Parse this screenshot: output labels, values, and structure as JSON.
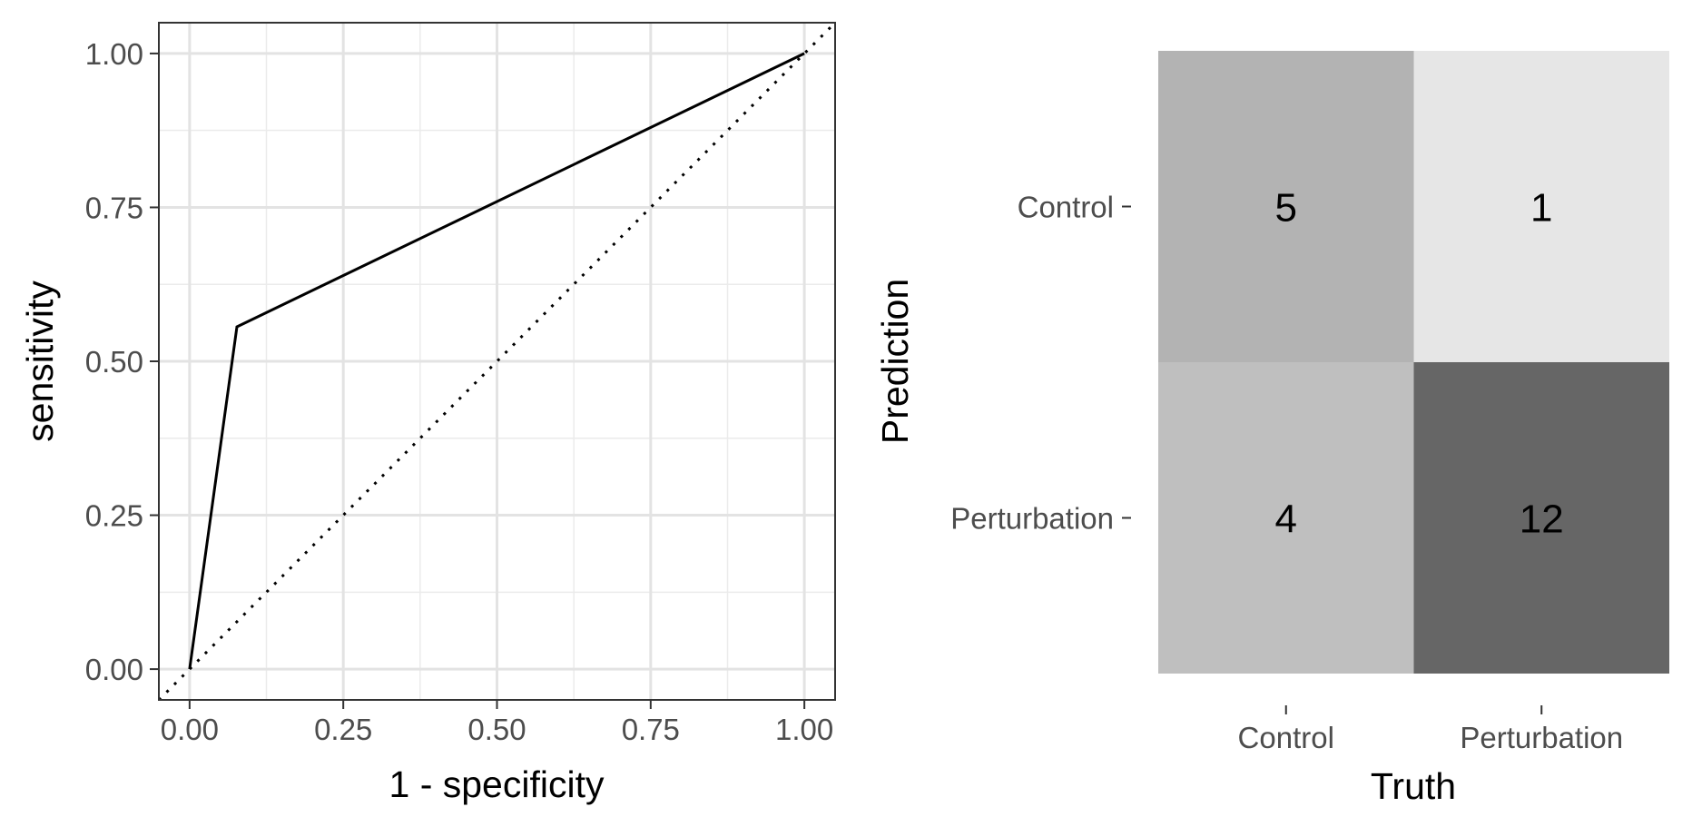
{
  "chart_data": [
    {
      "type": "line",
      "xlabel": "1 - specificity",
      "ylabel": "sensitivity",
      "xlim": [
        -0.05,
        1.05
      ],
      "ylim": [
        -0.05,
        1.05
      ],
      "x_ticks": [
        "0.00",
        "0.25",
        "0.50",
        "0.75",
        "1.00"
      ],
      "y_ticks": [
        "0.00",
        "0.25",
        "0.50",
        "0.75",
        "1.00"
      ],
      "grid": true,
      "series": [
        {
          "x": [
            0.0,
            0.077,
            1.0
          ],
          "y": [
            0.0,
            0.556,
            1.0
          ],
          "style": "solid",
          "color": "#000000"
        },
        {
          "x": [
            -0.05,
            1.05
          ],
          "y": [
            -0.05,
            1.05
          ],
          "style": "dotted",
          "color": "#000000"
        }
      ]
    },
    {
      "type": "heatmap",
      "xlabel": "Truth",
      "ylabel": "Prediction",
      "x_categories": [
        "Control",
        "Perturbation"
      ],
      "y_categories": [
        "Control",
        "Perturbation"
      ],
      "values": [
        [
          5,
          1
        ],
        [
          4,
          12
        ]
      ],
      "colors": [
        [
          "#b3b3b3",
          "#e6e6e6"
        ],
        [
          "#bfbfbf",
          "#666666"
        ]
      ]
    }
  ]
}
